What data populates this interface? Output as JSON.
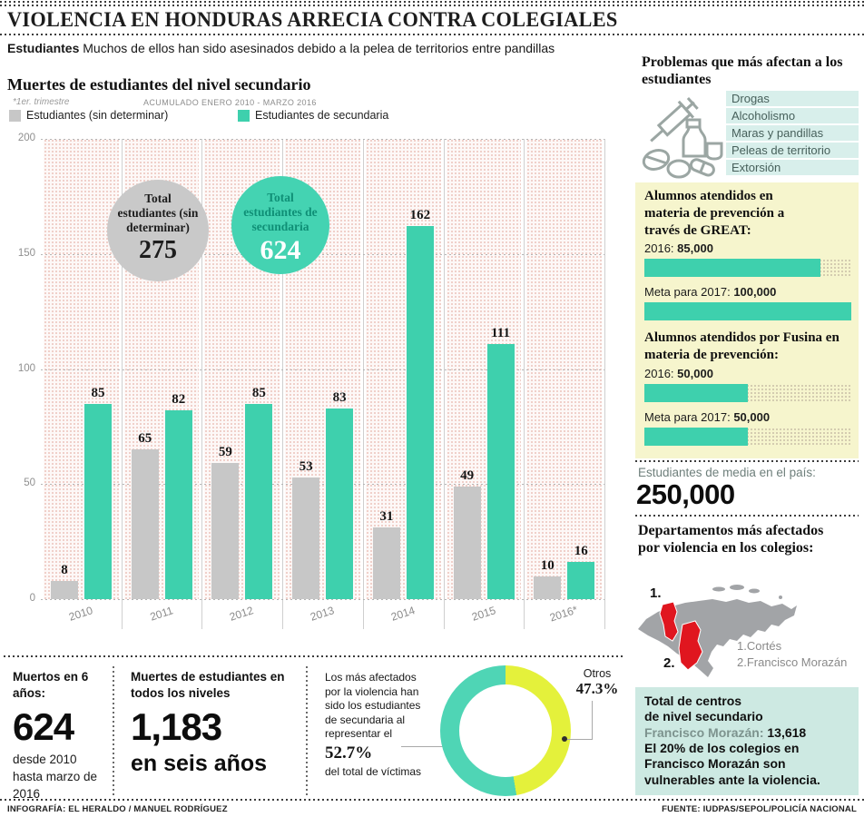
{
  "page": {
    "title": "VIOLENCIA EN HONDURAS ARRECIA CONTRA COLEGIALES",
    "intro_bold": "Estudiantes",
    "intro_rest": " Muchos de ellos han sido asesinados debido a la pelea de territorios entre pandillas",
    "footer_left": "INFOGRAFÍA: EL HERALDO / MANUEL RODRÍGUEZ",
    "footer_right": "FUENTE: IUDPAS/SEPOL/POLICÍA NACIONAL"
  },
  "chart": {
    "title": "Muertes de estudiantes del nivel secundario",
    "note_left": "*1er. trimestre",
    "note_right": "ACUMULADO ENERO 2010 - MARZO 2016",
    "totals": [
      {
        "label": "Total estudiantes (sin determinar)",
        "value": "275"
      },
      {
        "label": "Total estudiantes de secundaria",
        "value": "624"
      }
    ]
  },
  "chart_data": [
    {
      "type": "bar",
      "title": "Muertes de estudiantes del nivel secundario",
      "categories": [
        "2010",
        "2011",
        "2012",
        "2013",
        "2014",
        "2015",
        "2016*"
      ],
      "series": [
        {
          "name": "Estudiantes (sin determinar)",
          "color": "#c7c7c7",
          "values": [
            8,
            65,
            59,
            53,
            31,
            49,
            10
          ]
        },
        {
          "name": "Estudiantes de secundaria",
          "color": "#3ed0ad",
          "values": [
            85,
            82,
            85,
            83,
            162,
            111,
            16
          ]
        }
      ],
      "ylim": [
        0,
        200
      ],
      "yticks": [
        0,
        50,
        100,
        150,
        200
      ],
      "grid": true,
      "legend_position": "top"
    },
    {
      "type": "pie",
      "title": "Porcentaje de víctimas",
      "labels": [
        "Estudiantes de secundaria",
        "Otros"
      ],
      "values": [
        52.7,
        47.3
      ],
      "colors": [
        "#4fd5b5",
        "#e4f13b"
      ]
    },
    {
      "type": "bar",
      "title": "Alumnos atendidos en materia de prevención a través de GREAT",
      "categories": [
        "2016",
        "Meta para 2017"
      ],
      "values": [
        85000,
        100000
      ],
      "xmax": 100000,
      "orientation": "horizontal"
    },
    {
      "type": "bar",
      "title": "Alumnos atendidos por Fusina en materia de prevención",
      "categories": [
        "2016",
        "Meta para 2017"
      ],
      "values": [
        50000,
        50000
      ],
      "xmax": 100000,
      "orientation": "horizontal"
    }
  ],
  "sidebar": {
    "problems": {
      "title": "Problemas que más afectan a los estudiantes",
      "items": [
        "Drogas",
        "Alcoholismo",
        "Maras y pandillas",
        "Peleas de territorio",
        "Extorsión"
      ]
    },
    "great": {
      "title": "Alumnos atendidos en materia de prevención a través de GREAT:",
      "rows": [
        {
          "label": "2016:",
          "value": "85,000"
        },
        {
          "label": "Meta para 2017:",
          "value": "100,000"
        }
      ]
    },
    "fusina": {
      "title": "Alumnos atendidos por Fusina en materia de prevención:",
      "rows": [
        {
          "label": "2016:",
          "value": "50,000"
        },
        {
          "label": "Meta para 2017:",
          "value": "50,000"
        }
      ]
    },
    "media": {
      "label": "Estudiantes de media en el país:",
      "value": "250,000"
    },
    "departamentos": {
      "title": "Departamentos más afectados por violencia en los colegios:",
      "marker1": "1.",
      "marker2": "2.",
      "legend1": "1.Cortés",
      "legend2": "2.Francisco Morazán"
    },
    "centros": {
      "line1": "Total de centros",
      "line2": "de nivel secundario",
      "label": "Francisco Morazán:",
      "value": "13,618",
      "text": "El 20% de los colegios en Francisco Morazán son vulnerables ante la violencia."
    }
  },
  "bottom": {
    "box1": {
      "title": "Muertos en 6 años:",
      "value": "624",
      "sub": "desde 2010 hasta marzo de 2016"
    },
    "box2": {
      "title": "Muertes de estudiantes en todos los niveles",
      "value": "1,183",
      "sub": "en seis años"
    },
    "donut": {
      "text_before": "Los más afectados por la violencia han sido los estudiantes de secundaria al representar el",
      "pct_main": "52.7%",
      "text_after": "del total de víctimas",
      "other_label": "Otros",
      "other_pct": "47.3%"
    }
  }
}
